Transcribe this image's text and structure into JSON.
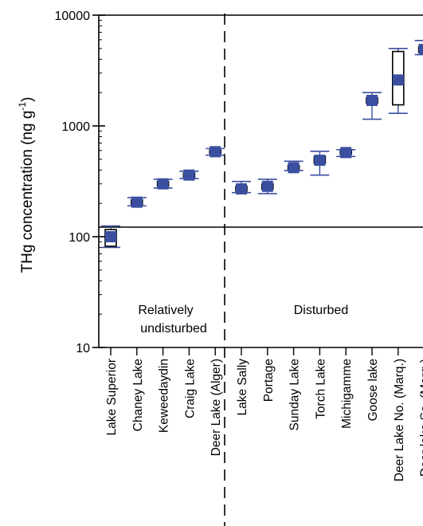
{
  "chart_data": {
    "type": "scatter",
    "ylabel": "THg concentration (ng g",
    "ylabel_sup": "-1",
    "ylabel_end": ")",
    "y_scale": "log",
    "ylim": [
      10,
      10000
    ],
    "y_ticks": [
      "10",
      "100",
      "1000",
      "10000"
    ],
    "marker_color": "#3b4fa0",
    "reference_line": 122,
    "categories": [
      "Lake Superior",
      "Chaney Lake",
      "Keweedaydin",
      "Craig Lake",
      "Deer Lake (Alger)",
      "Lake Sally",
      "Portage",
      "Sunday Lake",
      "Torch Lake",
      "Michigamme",
      "Goose lake",
      "Deer Lake No. (Marq.)",
      "Deer lake So. (Marq.)"
    ],
    "points": [
      {
        "category": "Lake Superior",
        "median": 100,
        "box": [
          82,
          116
        ],
        "whisker": [
          80,
          125
        ]
      },
      {
        "category": "Chaney Lake",
        "median": 205,
        "box": [
          195,
          215
        ],
        "whisker": [
          190,
          225
        ]
      },
      {
        "category": "Keweedaydin",
        "median": 300,
        "box": [
          285,
          315
        ],
        "whisker": [
          275,
          330
        ]
      },
      {
        "category": "Craig Lake",
        "median": 360,
        "box": [
          345,
          375
        ],
        "whisker": [
          335,
          390
        ]
      },
      {
        "category": "Deer Lake (Alger)",
        "median": 585,
        "box": [
          565,
          605
        ],
        "whisker": [
          545,
          625
        ]
      },
      {
        "category": "Lake Sally",
        "median": 270,
        "box": [
          258,
          285
        ],
        "whisker": [
          250,
          315
        ]
      },
      {
        "category": "Portage",
        "median": 285,
        "box": [
          268,
          300
        ],
        "whisker": [
          245,
          330
        ]
      },
      {
        "category": "Sunday Lake",
        "median": 420,
        "box": [
          405,
          440
        ],
        "whisker": [
          395,
          480
        ]
      },
      {
        "category": "Torch Lake",
        "median": 490,
        "box": [
          460,
          530
        ],
        "whisker": [
          360,
          590
        ]
      },
      {
        "category": "Michigamme",
        "median": 575,
        "box": [
          555,
          595
        ],
        "whisker": [
          530,
          610
        ]
      },
      {
        "category": "Goose lake",
        "median": 1700,
        "box": [
          1600,
          1800
        ],
        "whisker": [
          1150,
          2000
        ]
      },
      {
        "category": "Deer Lake No. (Marq.)",
        "median": 2600,
        "box": [
          1550,
          4700
        ],
        "whisker": [
          1300,
          5000
        ]
      },
      {
        "category": "Deer lake So. (Marq.)",
        "median": 4900,
        "box": [
          4600,
          5200
        ],
        "whisker": [
          4400,
          5900
        ]
      }
    ],
    "regions": [
      {
        "line1": "Relatively",
        "line2": "undisturbed"
      },
      {
        "line1": "Disturbed",
        "line2": ""
      }
    ]
  }
}
